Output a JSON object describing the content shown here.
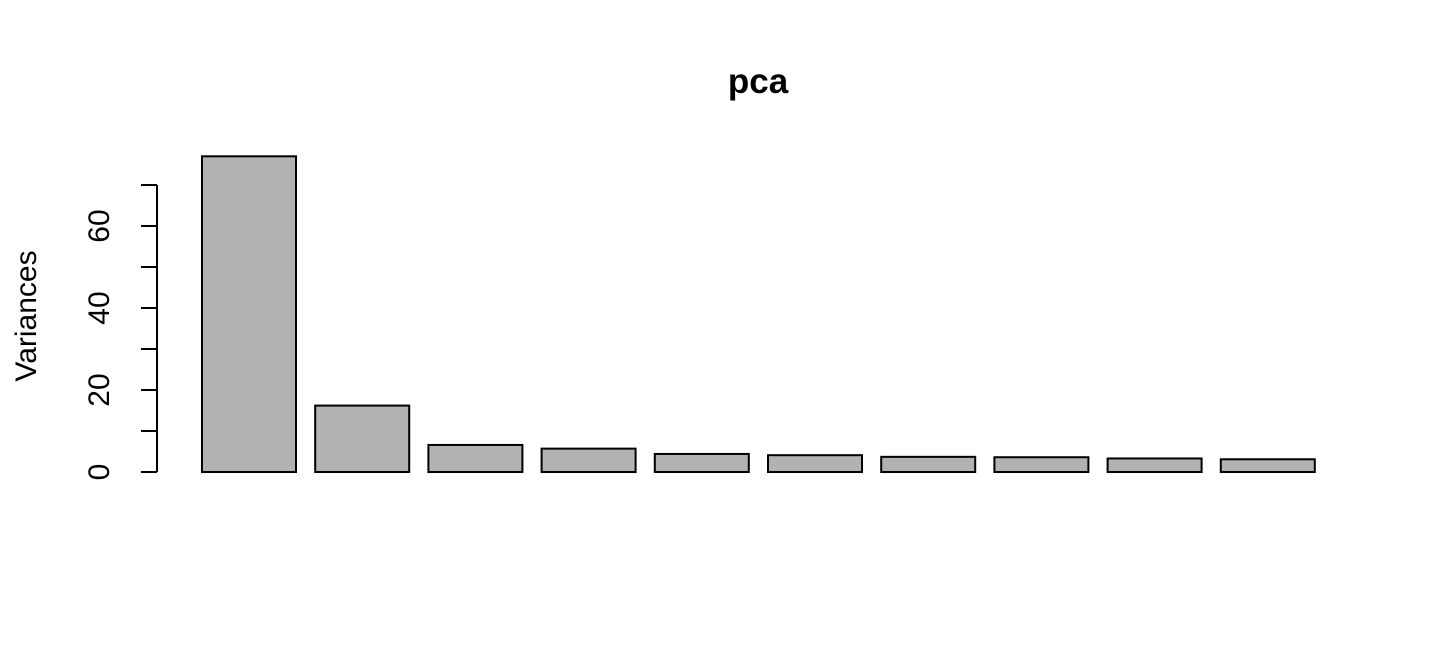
{
  "chart_data": {
    "type": "bar",
    "title": "pca",
    "xlabel": "",
    "ylabel": "Variances",
    "categories": [
      "",
      "",
      "",
      "",
      "",
      "",
      "",
      "",
      "",
      ""
    ],
    "values": [
      77,
      16.2,
      6.6,
      5.7,
      4.4,
      4.1,
      3.7,
      3.6,
      3.3,
      3.1
    ],
    "ylim": [
      0,
      77
    ],
    "yticks": [
      0,
      10,
      20,
      30,
      40,
      50,
      60,
      70
    ],
    "ytick_labels": [
      "0",
      "20",
      "40",
      "60"
    ],
    "grid": false,
    "legend": "none",
    "bar_color": "#b2b2b2",
    "edge_color": "#000000"
  }
}
